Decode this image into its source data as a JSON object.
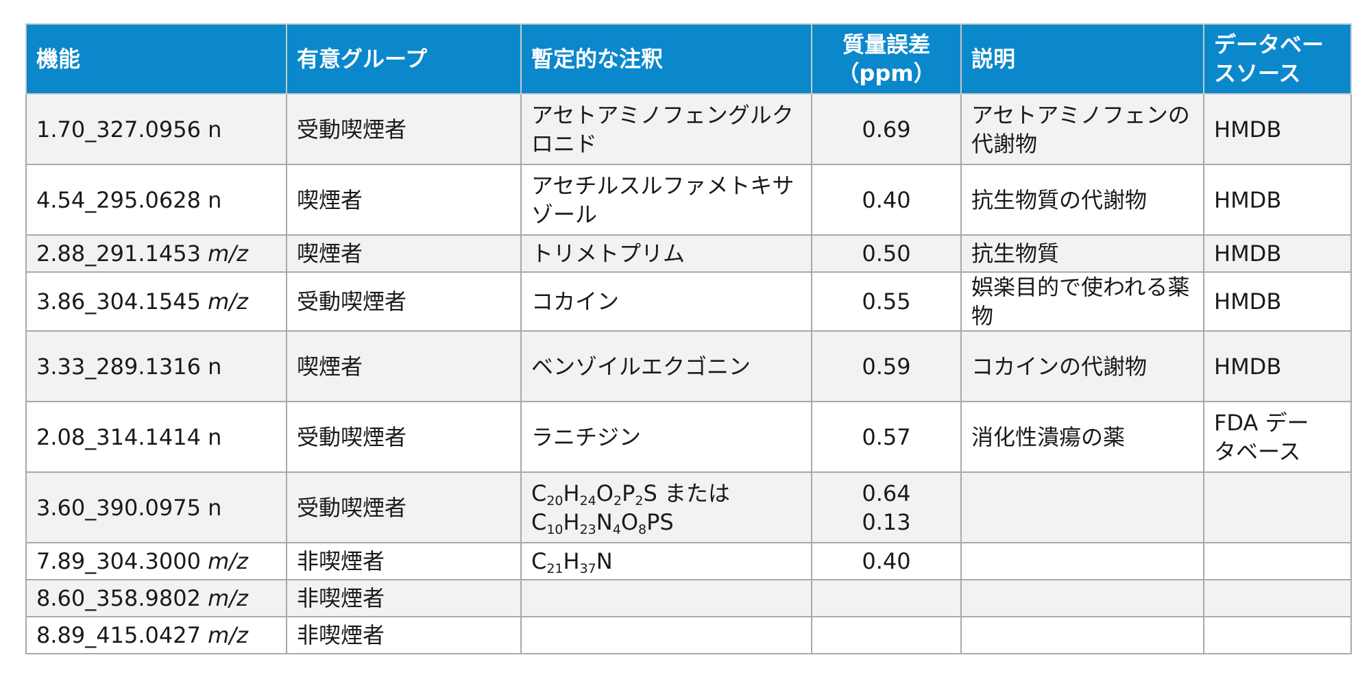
{
  "table": {
    "headers": {
      "feature": "機能",
      "group": "有意グループ",
      "annotation": "暫定的な注釈",
      "ppm_line1": "質量誤差",
      "ppm_line2": "（ppm）",
      "description": "説明",
      "source_line1": "データベー",
      "source_line2": "スソース"
    },
    "rows": [
      {
        "feature": "1.70_327.0956 n",
        "feature_suffix": "",
        "group": "受動喫煙者",
        "annotation": "アセトアミノフェングルクロニド",
        "ppm": [
          "0.69"
        ],
        "description": [
          "アセトアミノフェンの",
          "代謝物"
        ],
        "source": [
          "HMDB"
        ],
        "height": "tall"
      },
      {
        "feature": "4.54_295.0628 n",
        "feature_suffix": "",
        "group": "喫煙者",
        "annotation": "アセチルスルファメトキサゾール",
        "ppm": [
          "0.40"
        ],
        "description": [
          "抗生物質の代謝物"
        ],
        "source": [
          "HMDB"
        ],
        "height": "tall"
      },
      {
        "feature": "2.88_291.1453 ",
        "feature_suffix": "m/z",
        "group": "喫煙者",
        "annotation": "トリメトプリム",
        "ppm": [
          "0.50"
        ],
        "description": [
          "抗生物質"
        ],
        "source": [
          "HMDB"
        ],
        "height": "short"
      },
      {
        "feature": "3.86_304.1545 ",
        "feature_suffix": "m/z",
        "group": "受動喫煙者",
        "annotation": "コカイン",
        "ppm": [
          "0.55"
        ],
        "description": [
          "娯楽目的で使われる薬物"
        ],
        "source": [
          "HMDB"
        ],
        "height": "short"
      },
      {
        "feature": "3.33_289.1316 n",
        "feature_suffix": "",
        "group": "喫煙者",
        "annotation": "ベンゾイルエクゴニン",
        "ppm": [
          "0.59"
        ],
        "description": [
          "コカインの代謝物"
        ],
        "source": [
          "HMDB"
        ],
        "height": "tall"
      },
      {
        "feature": "2.08_314.1414 n",
        "feature_suffix": "",
        "group": "受動喫煙者",
        "annotation": "ラニチジン",
        "ppm": [
          "0.57"
        ],
        "description": [
          "消化性潰瘍の薬"
        ],
        "source": [
          "FDA デー",
          "タベース"
        ],
        "height": "tall"
      },
      {
        "feature": "3.60_390.0975 n",
        "feature_suffix": "",
        "group": "受動喫煙者",
        "annotation_formula": [
          [
            [
              "C",
              ""
            ],
            [
              "20",
              "s"
            ],
            [
              "H",
              ""
            ],
            [
              "24",
              "s"
            ],
            [
              "O",
              ""
            ],
            [
              "2",
              "s"
            ],
            [
              "P",
              ""
            ],
            [
              "2",
              "s"
            ],
            [
              "S  または",
              ""
            ]
          ],
          [
            [
              "C",
              ""
            ],
            [
              "10",
              "s"
            ],
            [
              "H",
              ""
            ],
            [
              "23",
              "s"
            ],
            [
              "N",
              ""
            ],
            [
              "4",
              "s"
            ],
            [
              "O",
              ""
            ],
            [
              "8",
              "s"
            ],
            [
              "PS",
              ""
            ]
          ]
        ],
        "ppm": [
          "0.64",
          "0.13"
        ],
        "description": [],
        "source": [],
        "height": "tall"
      },
      {
        "feature": "7.89_304.3000 ",
        "feature_suffix": "m/z",
        "group": "非喫煙者",
        "annotation_formula": [
          [
            [
              "C",
              ""
            ],
            [
              "21",
              "s"
            ],
            [
              "H",
              ""
            ],
            [
              "37",
              "s"
            ],
            [
              "N",
              ""
            ]
          ]
        ],
        "ppm": [
          "0.40"
        ],
        "description": [],
        "source": [],
        "height": "short"
      },
      {
        "feature": "8.60_358.9802 ",
        "feature_suffix": "m/z",
        "group": "非喫煙者",
        "annotation": "",
        "ppm": [],
        "description": [],
        "source": [],
        "height": "short"
      },
      {
        "feature": "8.89_415.0427 ",
        "feature_suffix": "m/z",
        "group": "非喫煙者",
        "annotation": "",
        "ppm": [],
        "description": [],
        "source": [],
        "height": "short"
      }
    ]
  }
}
